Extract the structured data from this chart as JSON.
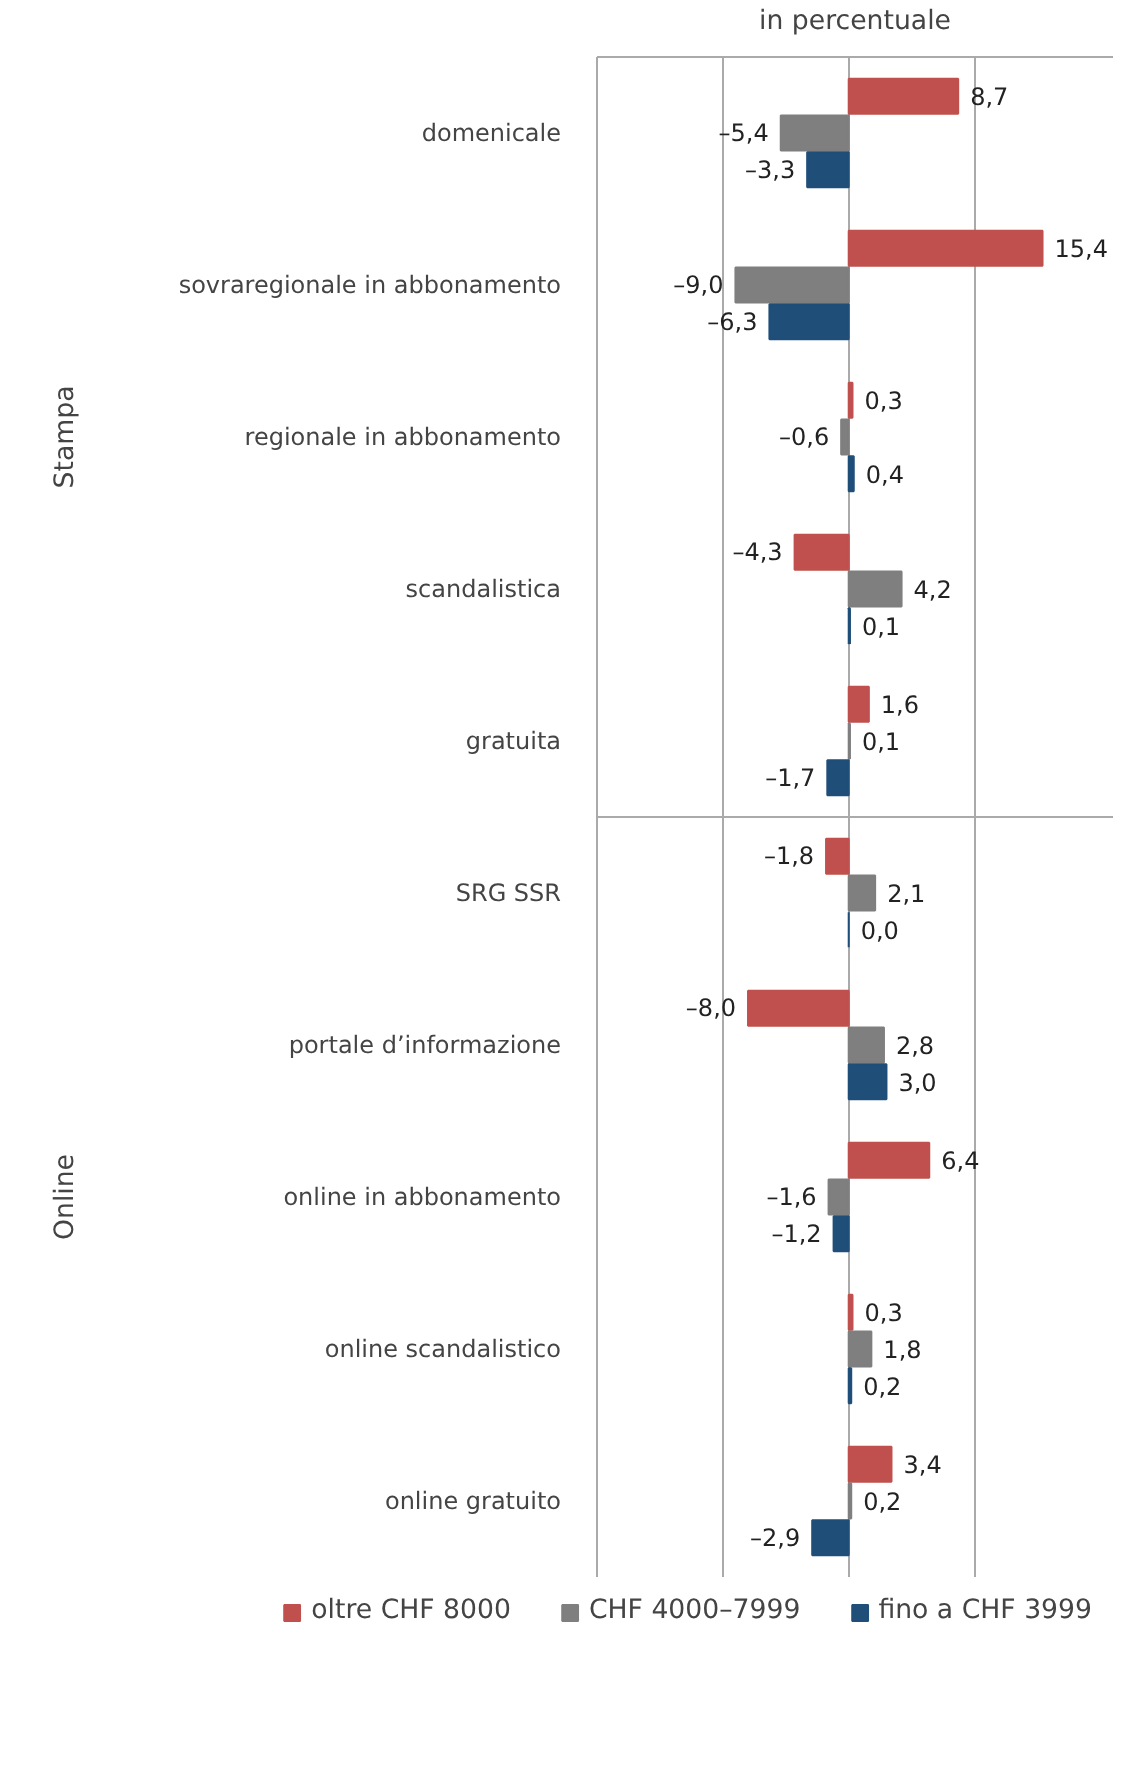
{
  "chart_data": {
    "type": "bar",
    "orientation": "horizontal",
    "xlabel": "in percentuale",
    "categories": [
      "domenicale",
      "sovraregionale in abbonamento",
      "regionale in abbonamento",
      "scandalistica",
      "gratuita",
      "SRG SSR",
      "portale d’informazione",
      "online in abbonamento",
      "online scandalistico",
      "online gratuito"
    ],
    "series": [
      {
        "name": "oltre CHF 8000",
        "color": "#c0504d",
        "values": [
          8.7,
          15.4,
          0.3,
          -4.3,
          1.6,
          -1.8,
          -8.0,
          6.4,
          0.3,
          3.4
        ],
        "value_labels": [
          "8,7",
          "15,4",
          "0,3",
          "–4,3",
          "1,6",
          "–1,8",
          "–8,0",
          "6,4",
          "0,3",
          "3,4"
        ]
      },
      {
        "name": "CHF 4000–7999",
        "color": "#7f7f7f",
        "values": [
          -5.4,
          -9.0,
          -0.6,
          4.2,
          0.1,
          2.1,
          2.8,
          -1.6,
          1.8,
          0.2
        ],
        "value_labels": [
          "–5,4",
          "–9,0",
          "–0,6",
          "4,2",
          "0,1",
          "2,1",
          "2,8",
          "–1,6",
          "1,8",
          "0,2"
        ]
      },
      {
        "name": "fino a CHF 3999",
        "color": "#1f4e79",
        "values": [
          -3.3,
          -6.3,
          0.4,
          0.1,
          -1.7,
          0.0,
          3.0,
          -1.2,
          0.2,
          -2.9
        ],
        "value_labels": [
          "–3,3",
          "–6,3",
          "0,4",
          "0,1",
          "–1,7",
          "0,0",
          "3,0",
          "–1,2",
          "0,2",
          "–2,9"
        ]
      }
    ],
    "annotations": [
      "Stampa",
      "Online"
    ],
    "xlim": [
      -20,
      21
    ],
    "xticks": [
      {
        "value": -20,
        "label": null
      },
      {
        "value": -10,
        "label": null
      },
      {
        "value": 0,
        "label": null
      },
      {
        "value": 10,
        "label": null
      }
    ],
    "tick_labels": "y",
    "grid": "x",
    "legend": "bottom"
  }
}
